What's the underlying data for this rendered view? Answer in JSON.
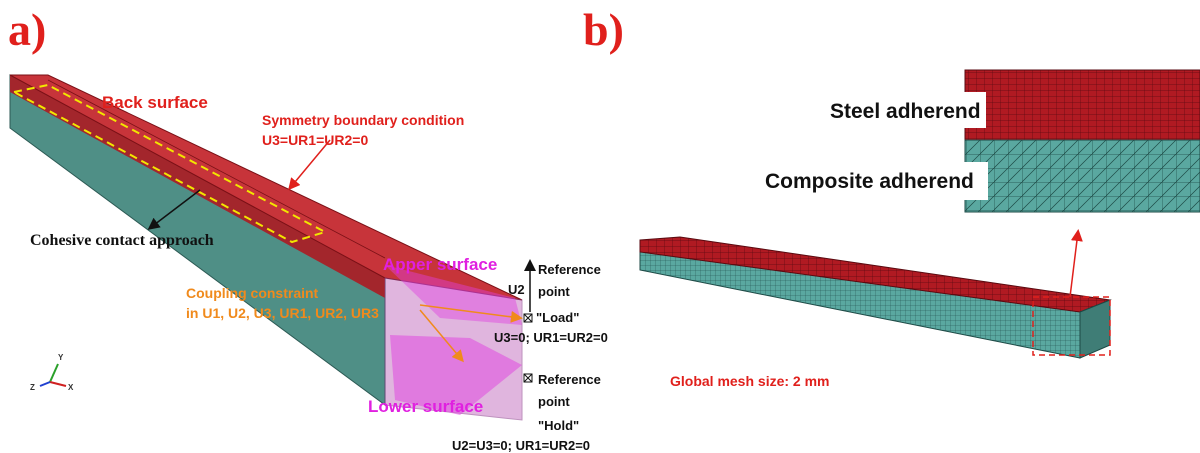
{
  "panel_a": {
    "label": "a)",
    "back_surface": "Back surface",
    "symmetry": [
      "Symmetry boundary condition",
      "U3=UR1=UR2=0"
    ],
    "cohesive": "Cohesive contact approach",
    "apper_surface": "Apper surface",
    "lower_surface": "Lower surface",
    "coupling": [
      "Coupling constraint",
      "in U1, U2, U3, UR1, UR2, UR3"
    ],
    "u2": "U2",
    "load_point": [
      "Reference",
      "point",
      "\"Load\"",
      "U3=0; UR1=UR2=0"
    ],
    "hold_point": [
      "Reference",
      "point",
      "\"Hold\"",
      "U2=U3=0; UR1=UR2=0"
    ],
    "axes": [
      "Y",
      "Z",
      "X"
    ]
  },
  "panel_b": {
    "label": "b)",
    "steel": "Steel adherend",
    "composite": "Composite adherend",
    "mesh_size": "Global mesh size: 2 mm"
  }
}
